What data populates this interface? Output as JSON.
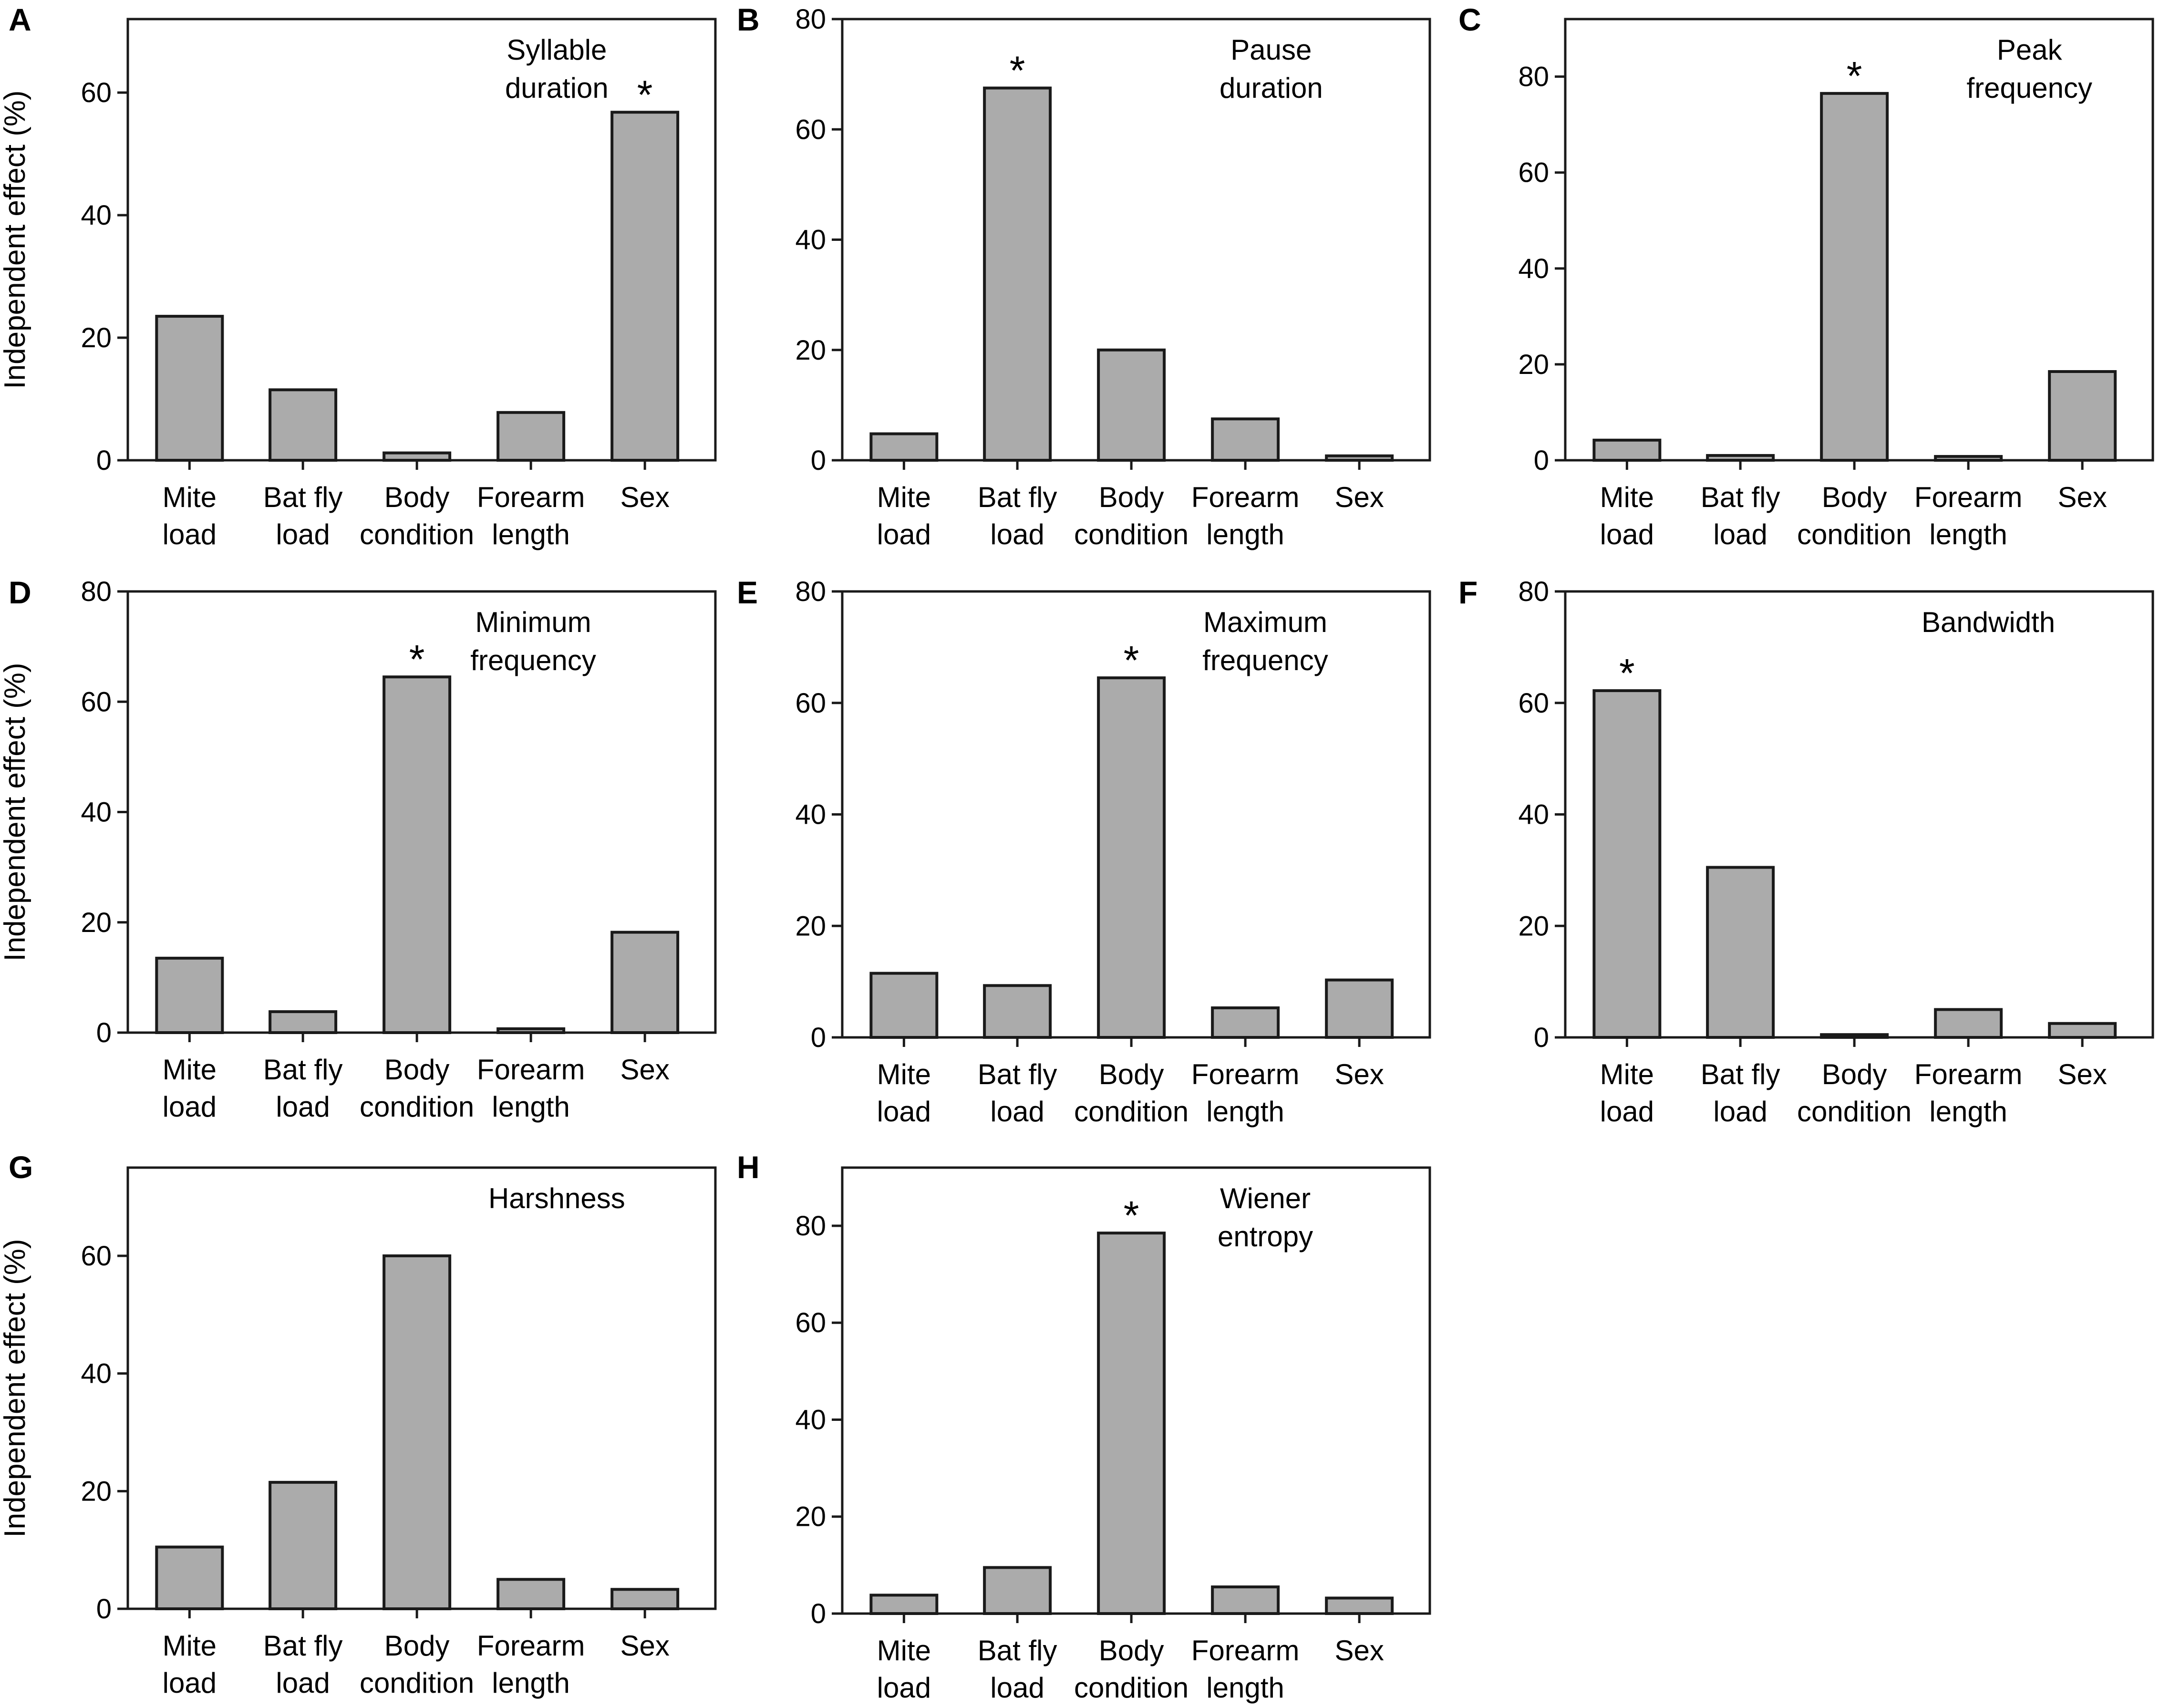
{
  "chart_data": [
    {
      "panel": "A",
      "type": "bar",
      "title": [
        "Syllable",
        "duration"
      ],
      "ylabel": "Independent effect  (%)",
      "categories": [
        [
          "Mite",
          "load"
        ],
        [
          "Bat fly",
          "load"
        ],
        [
          "Body",
          "condition"
        ],
        [
          "Forearm",
          "length"
        ],
        [
          "Sex",
          ""
        ]
      ],
      "values": [
        23.5,
        11.5,
        1.2,
        7.8,
        56.8
      ],
      "significance": [
        "",
        "",
        "",
        "",
        "*"
      ],
      "ylim": [
        0,
        72
      ],
      "yticks": [
        0,
        20,
        40,
        60
      ]
    },
    {
      "panel": "B",
      "type": "bar",
      "title": [
        "Pause",
        "duration"
      ],
      "ylabel": "",
      "categories": [
        [
          "Mite",
          "load"
        ],
        [
          "Bat fly",
          "load"
        ],
        [
          "Body",
          "condition"
        ],
        [
          "Forearm",
          "length"
        ],
        [
          "Sex",
          ""
        ]
      ],
      "values": [
        4.8,
        67.5,
        20.0,
        7.5,
        0.8
      ],
      "significance": [
        "",
        "*",
        "",
        "",
        ""
      ],
      "ylim": [
        0,
        80
      ],
      "yticks": [
        0,
        20,
        40,
        60,
        80
      ]
    },
    {
      "panel": "C",
      "type": "bar",
      "title": [
        "Peak",
        "frequency"
      ],
      "ylabel": "",
      "categories": [
        [
          "Mite",
          "load"
        ],
        [
          "Bat fly",
          "load"
        ],
        [
          "Body",
          "condition"
        ],
        [
          "Forearm",
          "length"
        ],
        [
          "Sex",
          ""
        ]
      ],
      "values": [
        4.2,
        1.0,
        76.5,
        0.8,
        18.5
      ],
      "significance": [
        "",
        "",
        "*",
        "",
        ""
      ],
      "ylim": [
        0,
        92
      ],
      "yticks": [
        0,
        20,
        40,
        60,
        80
      ]
    },
    {
      "panel": "D",
      "type": "bar",
      "title": [
        "Minimum",
        "frequency"
      ],
      "ylabel": "Independent effect  (%)",
      "categories": [
        [
          "Mite",
          "load"
        ],
        [
          "Bat fly",
          "load"
        ],
        [
          "Body",
          "condition"
        ],
        [
          "Forearm",
          "length"
        ],
        [
          "Sex",
          ""
        ]
      ],
      "values": [
        13.5,
        3.8,
        64.5,
        0.7,
        18.2
      ],
      "significance": [
        "",
        "",
        "*",
        "",
        ""
      ],
      "ylim": [
        0,
        80
      ],
      "yticks": [
        0,
        20,
        40,
        60,
        80
      ]
    },
    {
      "panel": "E",
      "type": "bar",
      "title": [
        "Maximum",
        "frequency"
      ],
      "ylabel": "",
      "categories": [
        [
          "Mite",
          "load"
        ],
        [
          "Bat fly",
          "load"
        ],
        [
          "Body",
          "condition"
        ],
        [
          "Forearm",
          "length"
        ],
        [
          "Sex",
          ""
        ]
      ],
      "values": [
        11.5,
        9.3,
        64.5,
        5.3,
        10.3
      ],
      "significance": [
        "",
        "",
        "*",
        "",
        ""
      ],
      "ylim": [
        0,
        80
      ],
      "yticks": [
        0,
        20,
        40,
        60,
        80
      ]
    },
    {
      "panel": "F",
      "type": "bar",
      "title": [
        "Bandwidth",
        ""
      ],
      "ylabel": "",
      "categories": [
        [
          "Mite",
          "load"
        ],
        [
          "Bat fly",
          "load"
        ],
        [
          "Body",
          "condition"
        ],
        [
          "Forearm",
          "length"
        ],
        [
          "Sex",
          ""
        ]
      ],
      "values": [
        62.2,
        30.5,
        0.5,
        5.0,
        2.5
      ],
      "significance": [
        "*",
        "",
        "",
        "",
        ""
      ],
      "ylim": [
        0,
        80
      ],
      "yticks": [
        0,
        20,
        40,
        60,
        80
      ]
    },
    {
      "panel": "G",
      "type": "bar",
      "title": [
        "Harshness",
        ""
      ],
      "ylabel": "Independent effect  (%)",
      "categories": [
        [
          "Mite",
          "load"
        ],
        [
          "Bat fly",
          "load"
        ],
        [
          "Body",
          "condition"
        ],
        [
          "Forearm",
          "length"
        ],
        [
          "Sex",
          ""
        ]
      ],
      "values": [
        10.5,
        21.5,
        60.0,
        5.0,
        3.3
      ],
      "significance": [
        "",
        "",
        "",
        "",
        ""
      ],
      "ylim": [
        0,
        75
      ],
      "yticks": [
        0,
        20,
        40,
        60
      ]
    },
    {
      "panel": "H",
      "type": "bar",
      "title": [
        "Wiener",
        "entropy"
      ],
      "ylabel": "",
      "categories": [
        [
          "Mite",
          "load"
        ],
        [
          "Bat fly",
          "load"
        ],
        [
          "Body",
          "condition"
        ],
        [
          "Forearm",
          "length"
        ],
        [
          "Sex",
          ""
        ]
      ],
      "values": [
        3.8,
        9.5,
        78.5,
        5.5,
        3.2
      ],
      "significance": [
        "",
        "",
        "*",
        "",
        ""
      ],
      "ylim": [
        0,
        92
      ],
      "yticks": [
        0,
        20,
        40,
        60,
        80
      ]
    }
  ],
  "colors": {
    "bar_fill": "#ababab",
    "bar_stroke": "#1a1a1a",
    "axis": "#1a1a1a",
    "text": "#000000",
    "background": "#ffffff"
  }
}
